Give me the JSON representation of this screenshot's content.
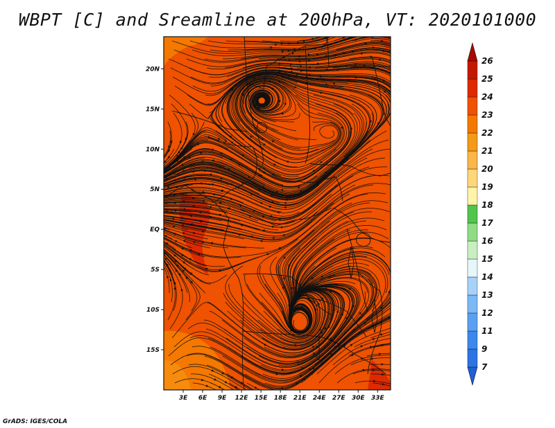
{
  "title": "WBPT [C] and Sreamline at 200hPa, VT: 2020101000",
  "footer": "GrADS: IGES/COLA",
  "map": {
    "lon_range": [
      0,
      35
    ],
    "lat_range": [
      -20,
      24
    ],
    "x_ticks": [
      {
        "value": 3,
        "label": "3E"
      },
      {
        "value": 6,
        "label": "6E"
      },
      {
        "value": 9,
        "label": "9E"
      },
      {
        "value": 12,
        "label": "12E"
      },
      {
        "value": 15,
        "label": "15E"
      },
      {
        "value": 18,
        "label": "18E"
      },
      {
        "value": 21,
        "label": "21E"
      },
      {
        "value": 24,
        "label": "24E"
      },
      {
        "value": 27,
        "label": "27E"
      },
      {
        "value": 30,
        "label": "30E"
      },
      {
        "value": 33,
        "label": "33E"
      }
    ],
    "y_ticks": [
      {
        "value": 20,
        "label": "20N"
      },
      {
        "value": 15,
        "label": "15N"
      },
      {
        "value": 10,
        "label": "10N"
      },
      {
        "value": 5,
        "label": "5N"
      },
      {
        "value": 0,
        "label": "EQ"
      },
      {
        "value": -5,
        "label": "5S"
      },
      {
        "value": -10,
        "label": "10S"
      },
      {
        "value": -15,
        "label": "15S"
      }
    ],
    "field": "WBPT [C] at 200hPa",
    "dominant_level": "23-24",
    "vortex_center": {
      "lon": 15,
      "lat": 16
    }
  },
  "colorbar": {
    "levels": [
      7,
      9,
      11,
      12,
      13,
      14,
      15,
      16,
      17,
      18,
      19,
      20,
      21,
      22,
      23,
      24,
      25,
      26
    ],
    "colors": [
      "#1f5fd6",
      "#2c74e4",
      "#3d88ee",
      "#5aa0f2",
      "#7bb8f6",
      "#a6d2fa",
      "#e6f7fb",
      "#c8efc2",
      "#90dc86",
      "#52c44b",
      "#fff4a8",
      "#fed77a",
      "#fbb548",
      "#f59a17",
      "#f57800",
      "#ef5200",
      "#dd2a00",
      "#c41900",
      "#a80b00"
    ],
    "labels": [
      "7",
      "9",
      "11",
      "12",
      "13",
      "14",
      "15",
      "16",
      "17",
      "18",
      "19",
      "20",
      "21",
      "22",
      "23",
      "24",
      "25",
      "26"
    ]
  }
}
